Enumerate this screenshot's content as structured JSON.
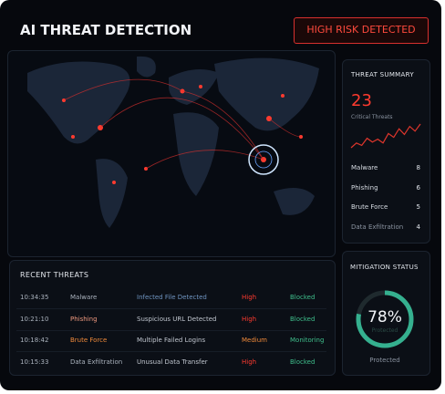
{
  "header": {
    "title": "AI THREAT DETECTION",
    "alert": "HIGH RISK DETECTED"
  },
  "summary": {
    "title": "THREAT SUMMARY",
    "count": 23,
    "count_label": "Critical Threats",
    "trend": [
      2,
      3,
      2.5,
      4,
      3.2,
      3.8,
      3,
      5,
      4.2,
      6,
      4.8,
      6.5,
      5.5,
      7
    ],
    "items": [
      {
        "name": "Malware",
        "value": 8
      },
      {
        "name": "Phishing",
        "value": 6
      },
      {
        "name": "Brute Force",
        "value": 5
      },
      {
        "name": "Data Exfiltration",
        "value": 4
      }
    ]
  },
  "recent": {
    "title": "RECENT THREATS",
    "rows": [
      [
        "10:34:35",
        "Malware",
        "Infected File Detected",
        "High",
        "Blocked"
      ],
      [
        "10:21:10",
        "Phishing",
        "Suspicious URL Detected",
        "High",
        "Blocked"
      ],
      [
        "10:18:42",
        "Brute Force",
        "Multiple Failed Logins",
        "Medium",
        "Monitoring"
      ],
      [
        "10:15:33",
        "Data Exfiltration",
        "Unusual Data Transfer",
        "High",
        "Blocked"
      ]
    ]
  },
  "mitigation": {
    "title": "MITIGATION STATUS",
    "value": 78,
    "value_label": "78%",
    "sub_label": "Protected",
    "caption": "Protected"
  }
}
